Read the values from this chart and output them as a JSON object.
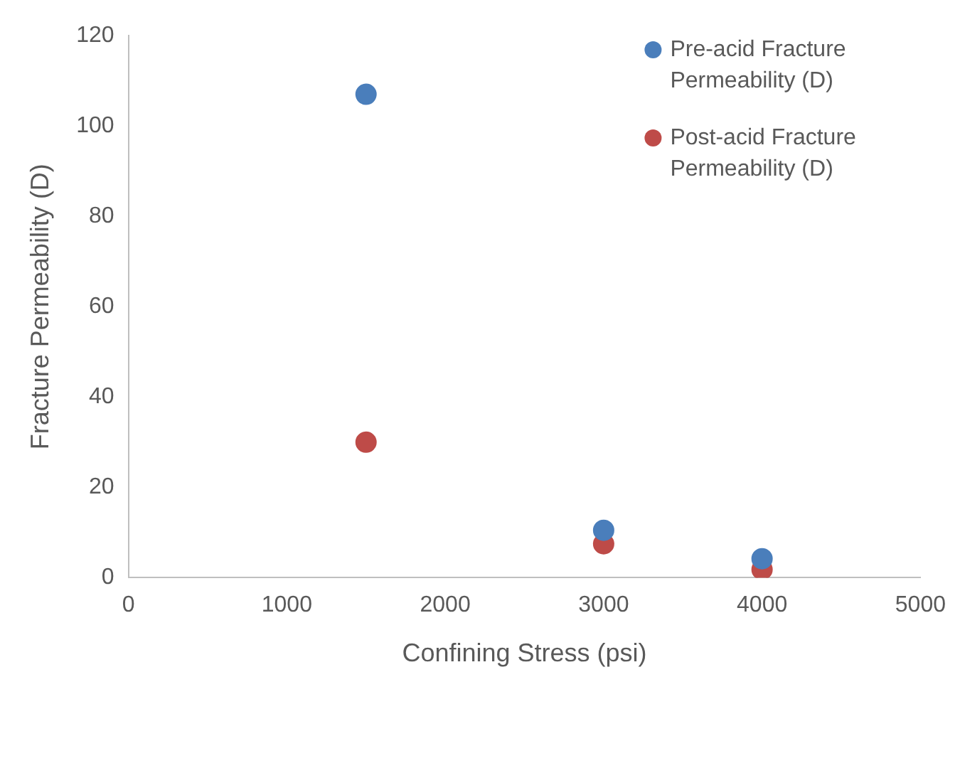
{
  "chart_data": {
    "type": "scatter",
    "xlabel": "Confining Stress (psi)",
    "ylabel": "Fracture Permeability (D)",
    "xlim": [
      0,
      5000
    ],
    "xticks": [
      0,
      1000,
      2000,
      3000,
      4000,
      5000
    ],
    "ylim": [
      0,
      120
    ],
    "yticks": [
      0,
      20,
      40,
      60,
      80,
      100,
      120
    ],
    "grid": false,
    "legend": "top right",
    "marker": "circle",
    "series": [
      {
        "name": "Pre-acid Fracture Permeability (D)",
        "color": "#4a7ebb",
        "x": [
          1500,
          3000,
          4000
        ],
        "values": [
          107,
          10.5,
          4.2
        ]
      },
      {
        "name": "Post-acid Fracture Permeability (D)",
        "color": "#be4b48",
        "x": [
          1500,
          3000,
          4000
        ],
        "values": [
          30,
          7.5,
          1.8
        ]
      }
    ]
  }
}
